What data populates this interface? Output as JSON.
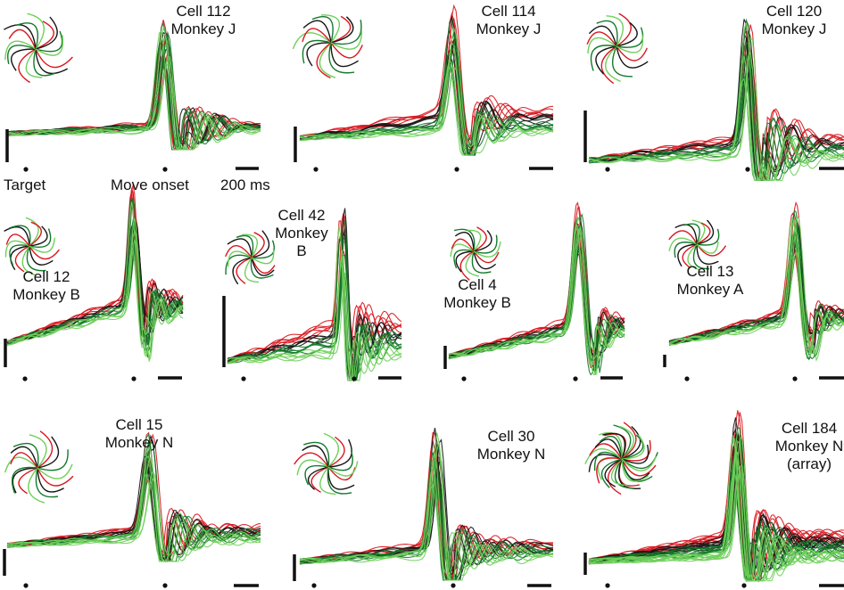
{
  "figure": {
    "colors": {
      "red": "#d8161e",
      "black": "#141414",
      "green_dark": "#137a2a",
      "green_light": "#6fcf5a"
    },
    "legend": {
      "target": "Target",
      "move_onset": "Move onset",
      "scale": "200 ms"
    },
    "panels": [
      {
        "id": "p1",
        "lines": [
          "Cell 112",
          "Monkey J"
        ]
      },
      {
        "id": "p2",
        "lines": [
          "Cell 114",
          "Monkey J"
        ]
      },
      {
        "id": "p3",
        "lines": [
          "Cell 120",
          "Monkey J"
        ]
      },
      {
        "id": "p4",
        "lines": [
          "Cell 12",
          "Monkey B"
        ]
      },
      {
        "id": "p5",
        "lines": [
          "Cell 42",
          "Monkey",
          "B"
        ]
      },
      {
        "id": "p6",
        "lines": [
          "Cell 4",
          "Monkey B"
        ]
      },
      {
        "id": "p7",
        "lines": [
          "Cell 13",
          "Monkey A"
        ]
      },
      {
        "id": "p8",
        "lines": [
          "Cell 15",
          "Monkey N"
        ]
      },
      {
        "id": "p9",
        "lines": [
          "Cell 30",
          "Monkey N"
        ]
      },
      {
        "id": "p10",
        "lines": [
          "Cell 184",
          "Monkey N",
          "(array)"
        ]
      }
    ]
  }
}
